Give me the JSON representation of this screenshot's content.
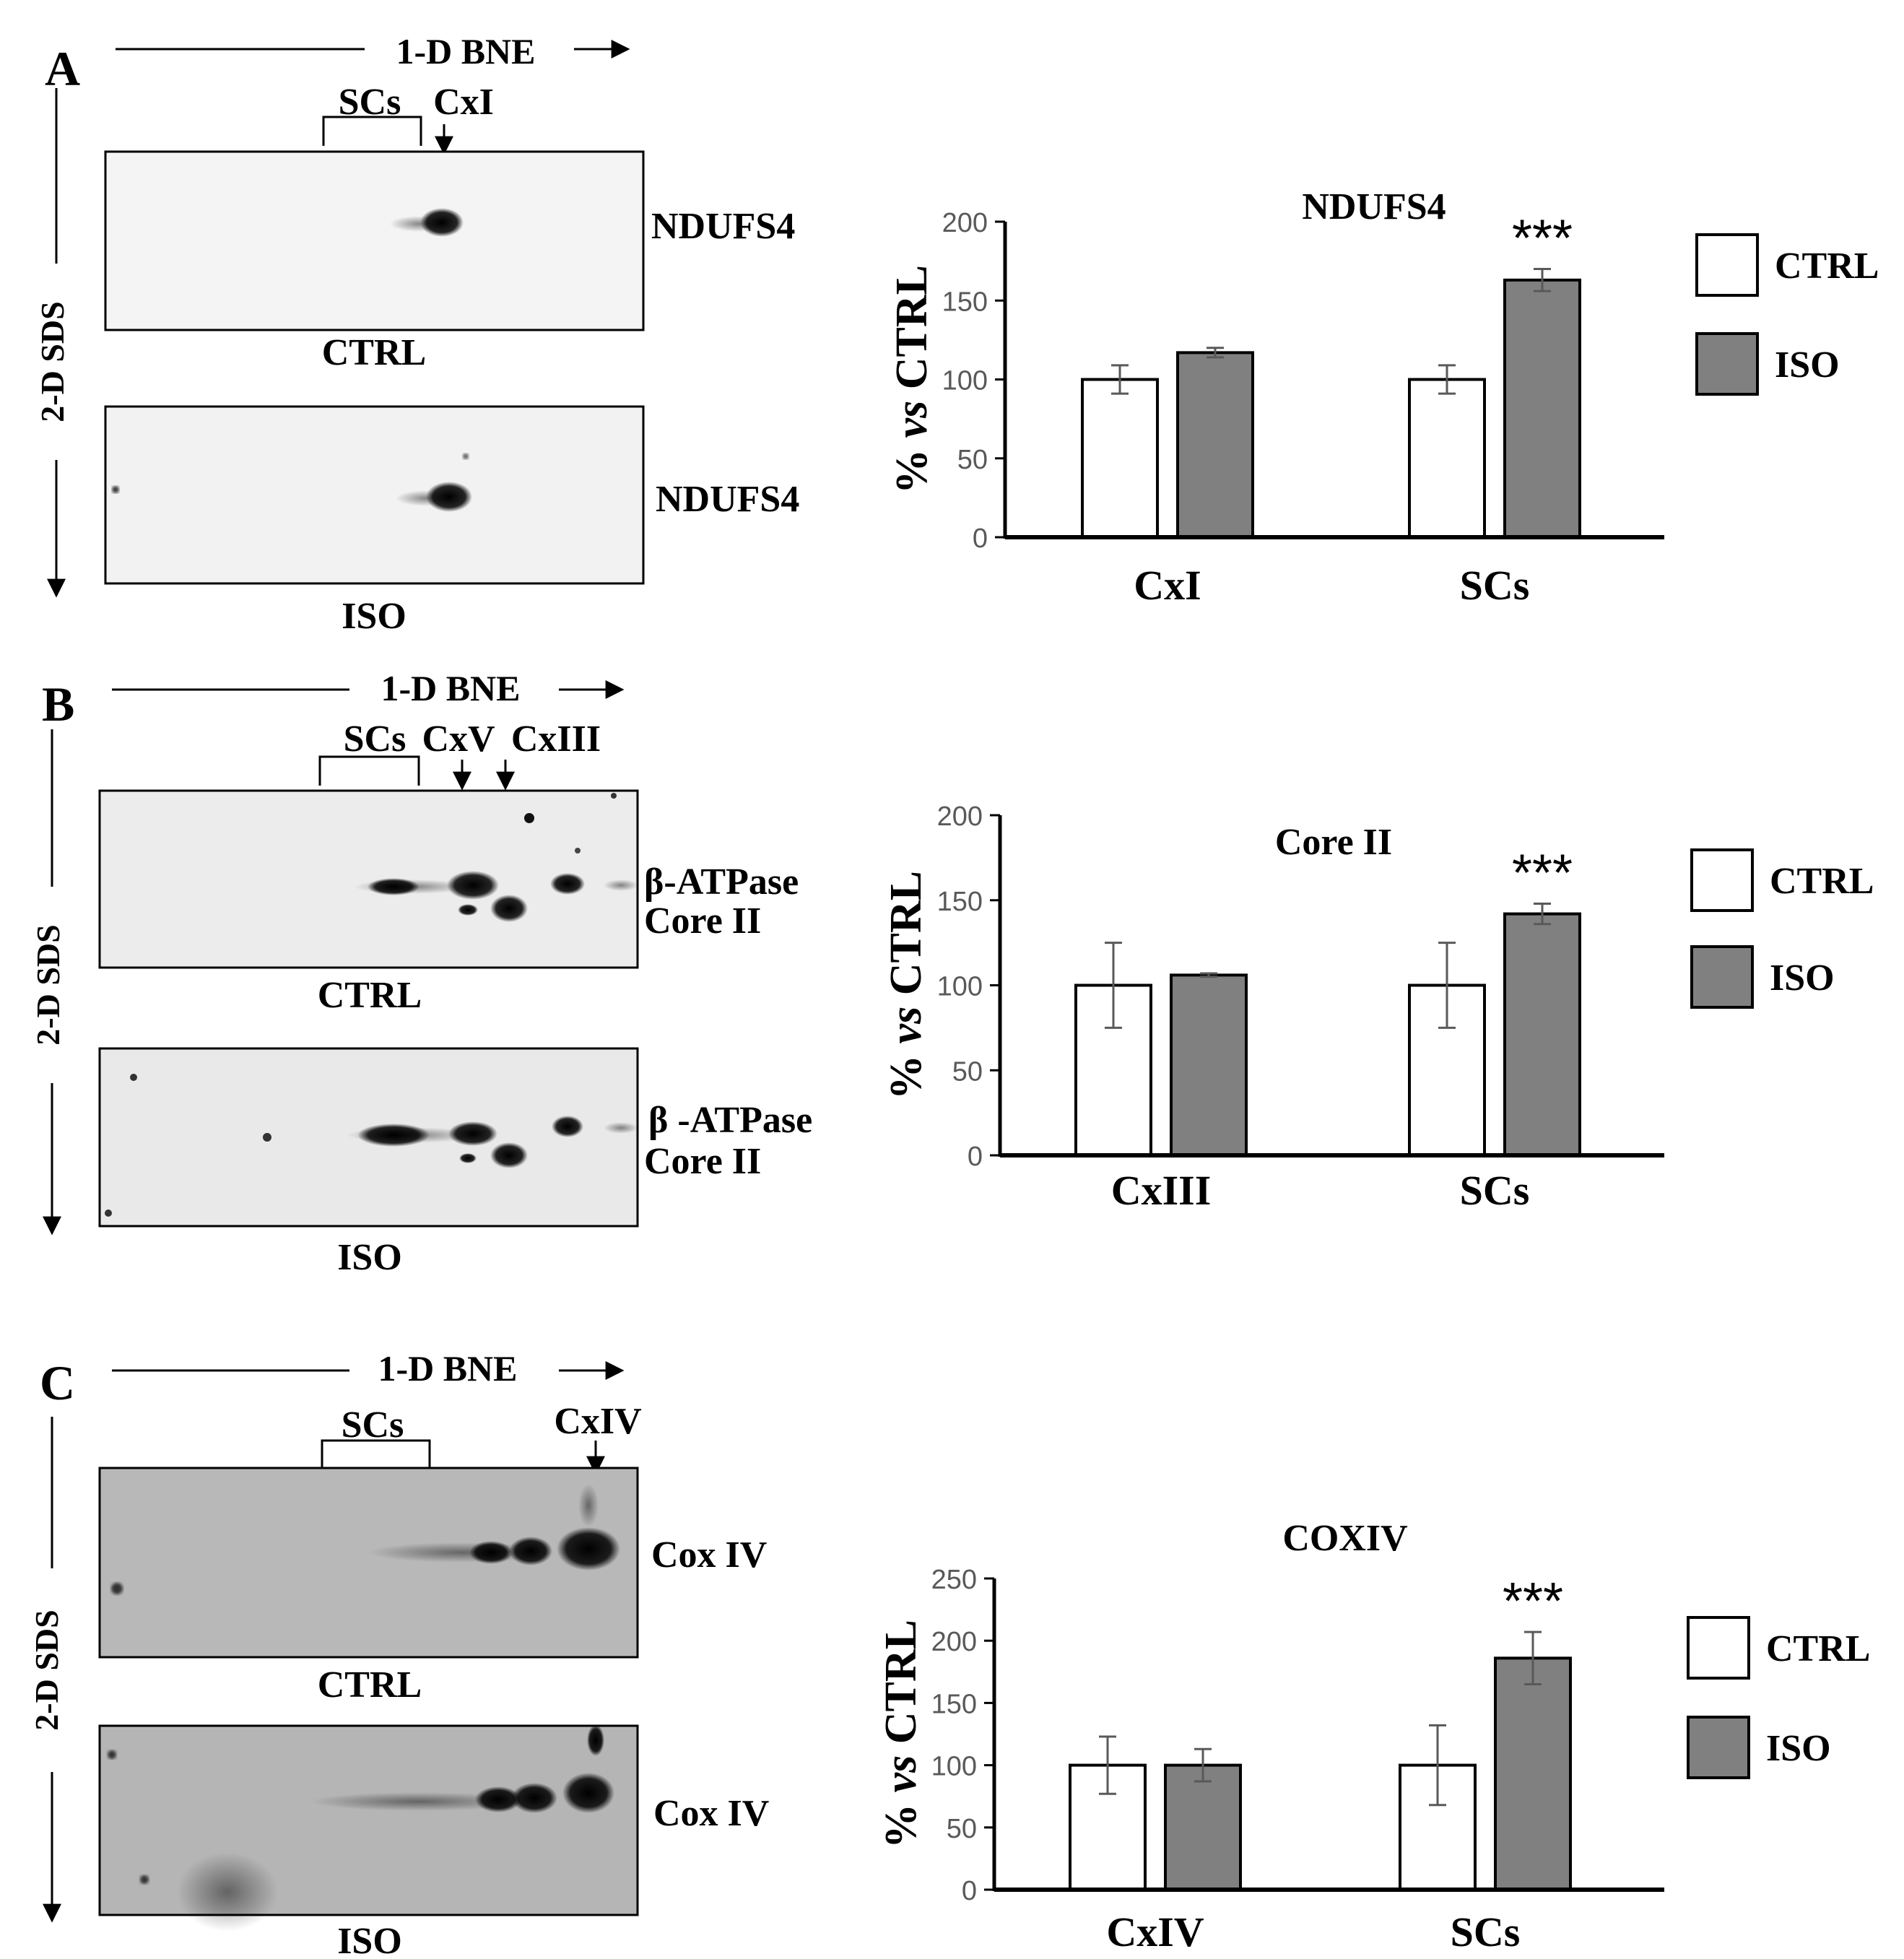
{
  "panels": [
    {
      "letter": "A",
      "bne_label": "1-D BNE",
      "sds_label": "2-D SDS",
      "lane_labels": [
        "SCs",
        "CxI"
      ],
      "blots": [
        {
          "condition": "CTRL",
          "protein": "NDUFS4"
        },
        {
          "condition": "ISO",
          "protein": "NDUFS4"
        }
      ]
    },
    {
      "letter": "B",
      "bne_label": "1-D BNE",
      "sds_label": "2-D SDS",
      "lane_labels": [
        "SCs",
        "CxV",
        "CxIII"
      ],
      "blots": [
        {
          "condition": "CTRL",
          "protein": "β-ATPase",
          "protein2": "Core II"
        },
        {
          "condition": "ISO",
          "protein": "β -ATPase",
          "protein2": "Core II"
        }
      ]
    },
    {
      "letter": "C",
      "bne_label": "1-D BNE",
      "sds_label": "2-D SDS",
      "lane_labels": [
        "SCs",
        "CxIV"
      ],
      "blots": [
        {
          "condition": "CTRL",
          "protein": "Cox IV"
        },
        {
          "condition": "ISO",
          "protein": "Cox IV"
        }
      ]
    }
  ],
  "colors": {
    "ctrl": "#ffffff",
    "iso": "#808080",
    "axis": "#000000",
    "error_bar": "#595959"
  },
  "chart_data": [
    {
      "type": "bar",
      "title": "NDUFS4",
      "ylabel_prefix": "% ",
      "ylabel_italic": "vs",
      "ylabel_suffix": " CTRL",
      "categories": [
        "CxI",
        "SCs"
      ],
      "series": [
        {
          "name": "CTRL",
          "values": [
            100,
            100
          ],
          "errors": [
            9,
            9
          ]
        },
        {
          "name": "ISO",
          "values": [
            117,
            163
          ],
          "errors": [
            3,
            7
          ]
        }
      ],
      "ylim": [
        0,
        200
      ],
      "yticks": [
        0,
        50,
        100,
        150,
        200
      ],
      "significance": [
        "",
        "***"
      ],
      "legend_position": "right",
      "grid": false
    },
    {
      "type": "bar",
      "title": "Core II",
      "ylabel_prefix": "% ",
      "ylabel_italic": "vs",
      "ylabel_suffix": " CTRL",
      "categories": [
        "CxIII",
        "SCs"
      ],
      "series": [
        {
          "name": "CTRL",
          "values": [
            100,
            100
          ],
          "errors": [
            25,
            25
          ]
        },
        {
          "name": "ISO",
          "values": [
            106,
            142
          ],
          "errors": [
            1,
            6
          ]
        }
      ],
      "ylim": [
        0,
        200
      ],
      "yticks": [
        0,
        50,
        100,
        150,
        200
      ],
      "significance": [
        "",
        "***"
      ],
      "legend_position": "right",
      "grid": false
    },
    {
      "type": "bar",
      "title": "COXIV",
      "ylabel_prefix": "% ",
      "ylabel_italic": "vs",
      "ylabel_suffix": " CTRL",
      "categories": [
        "CxIV",
        "SCs"
      ],
      "series": [
        {
          "name": "CTRL",
          "values": [
            100,
            100
          ],
          "errors": [
            23,
            32
          ]
        },
        {
          "name": "ISO",
          "values": [
            100,
            186
          ],
          "errors": [
            13,
            21
          ]
        }
      ],
      "ylim": [
        0,
        250
      ],
      "yticks": [
        0,
        50,
        100,
        150,
        200,
        250
      ],
      "significance": [
        "",
        "***"
      ],
      "legend_position": "right",
      "grid": false
    }
  ]
}
